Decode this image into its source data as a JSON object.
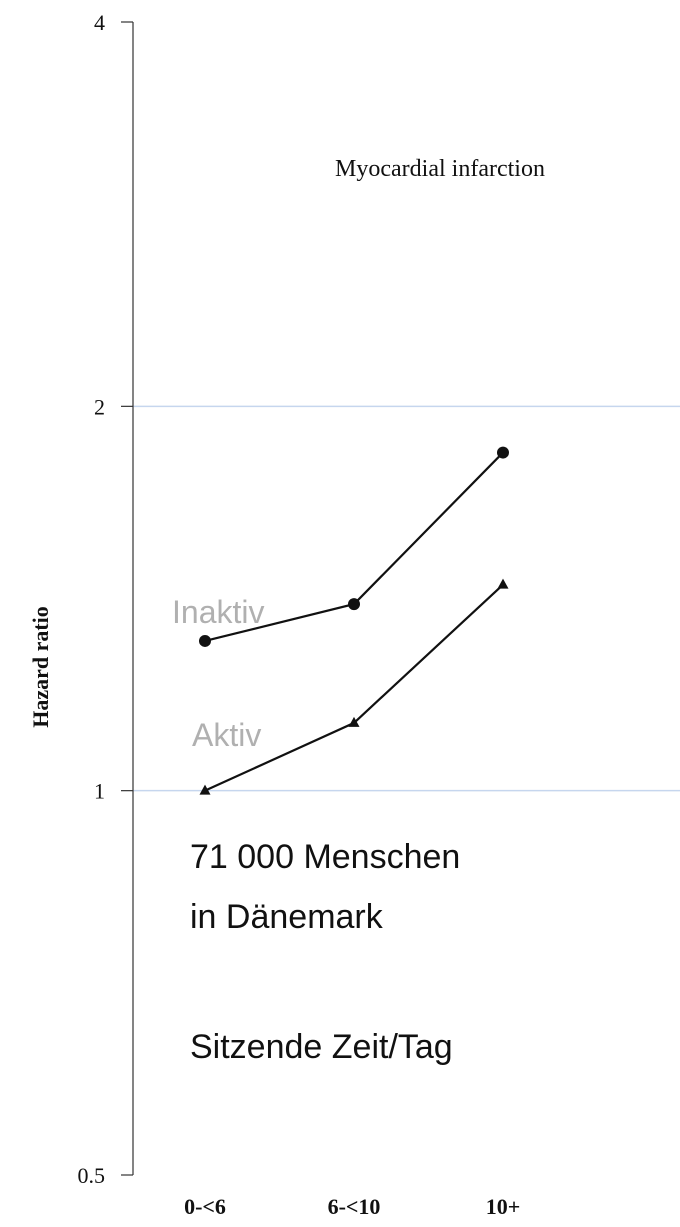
{
  "chart_data": {
    "type": "line",
    "title": "Myocardial infarction",
    "ylabel": "Hazard ratio",
    "xlabel": "",
    "y_scale": "log",
    "ylim": [
      0.5,
      4
    ],
    "y_ticks": [
      "0.5",
      "1",
      "2",
      "4"
    ],
    "y_tick_values": [
      0.5,
      1,
      2,
      4
    ],
    "gridlines_at": [
      1,
      2
    ],
    "grid_color": "#c6d6ee",
    "categories": [
      "0-<6",
      "6-<10",
      "10+"
    ],
    "series": [
      {
        "name": "Inaktiv",
        "marker": "circle",
        "values": [
          1.31,
          1.4,
          1.84
        ]
      },
      {
        "name": "Aktiv",
        "marker": "triangle",
        "values": [
          1.0,
          1.13,
          1.45
        ]
      }
    ],
    "annotations": {
      "line1": "71 000 Menschen",
      "line2": "in Dänemark",
      "line3": "Sitzende Zeit/Tag"
    }
  }
}
